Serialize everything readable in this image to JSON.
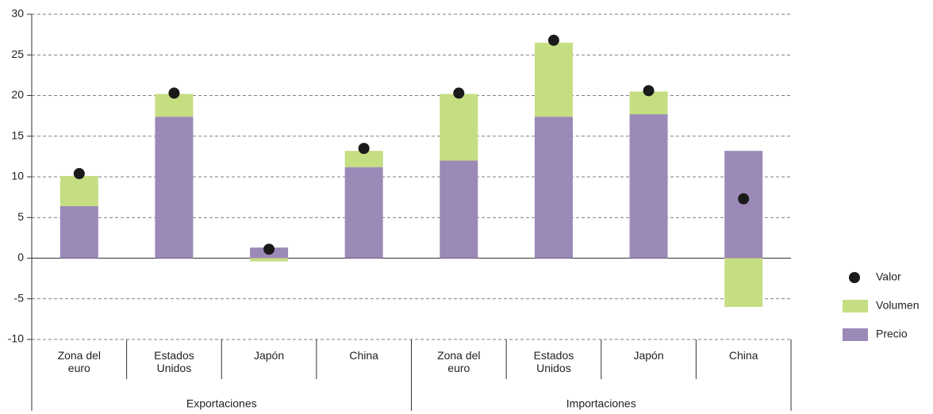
{
  "chart_data": {
    "type": "bar",
    "stacked": true,
    "categories": [
      "Zona del euro",
      "Estados Unidos",
      "Japón",
      "China",
      "Zona del euro",
      "Estados Unidos",
      "Japón",
      "China"
    ],
    "groups": [
      "Exportaciones",
      "Importaciones"
    ],
    "series": [
      {
        "name": "Valor",
        "type": "dot",
        "color": "#1a1a1a",
        "values": [
          10.4,
          20.3,
          1.1,
          13.5,
          20.3,
          26.8,
          20.6,
          7.3
        ]
      },
      {
        "name": "Volumen",
        "type": "bar",
        "color": "#c5de82",
        "values": [
          3.7,
          2.8,
          -0.4,
          2.0,
          8.2,
          9.1,
          2.8,
          -6.0
        ]
      },
      {
        "name": "Precio",
        "type": "bar",
        "color": "#9b89b8",
        "values": [
          6.4,
          17.4,
          1.3,
          11.2,
          12.0,
          17.4,
          17.7,
          13.2
        ]
      }
    ],
    "ylim": [
      -10,
      30
    ],
    "yticks": [
      -10,
      -5,
      0,
      5,
      10,
      15,
      20,
      25,
      30
    ],
    "grid": true,
    "legend": "right"
  }
}
